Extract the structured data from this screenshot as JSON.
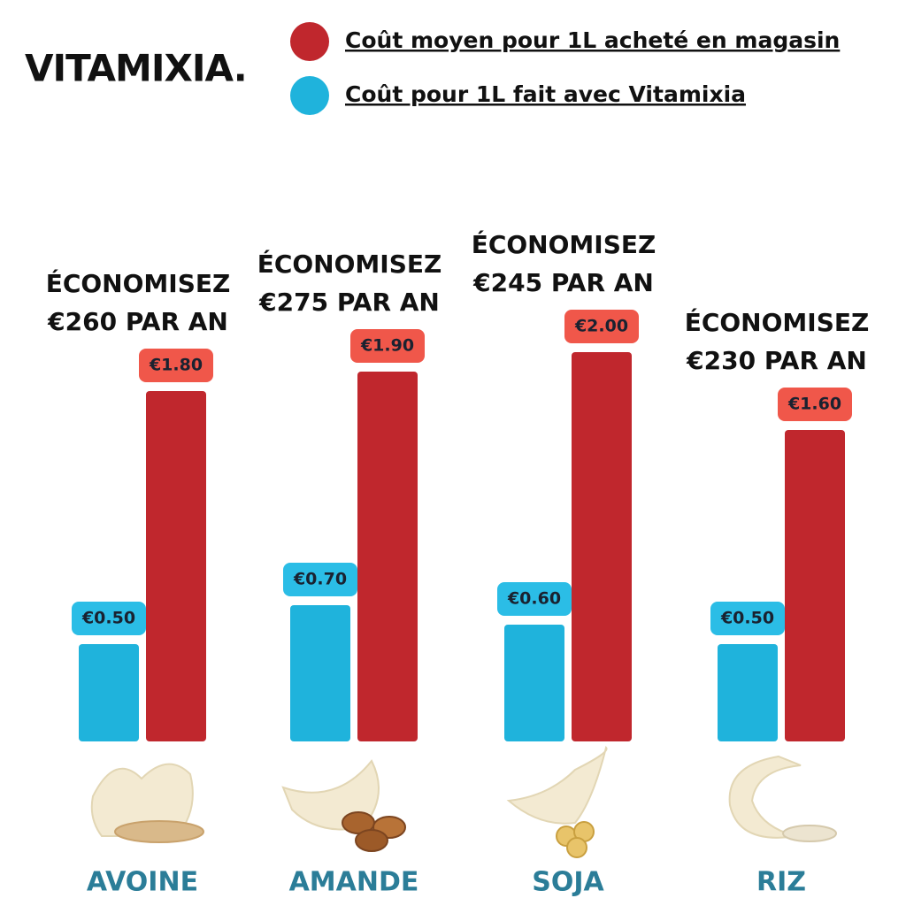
{
  "chart_data": {
    "type": "bar",
    "brand": "VITAMIXIA.",
    "categories": [
      "AVOINE",
      "AMANDE",
      "SOJA",
      "RIZ"
    ],
    "series": [
      {
        "name": "Coût pour 1L fait avec Vitamixia",
        "color": "#1fb3dc",
        "label_color": "#2bbde6",
        "values": [
          0.5,
          0.7,
          0.6,
          0.5
        ],
        "value_labels": [
          "€0.50",
          "€0.70",
          "€0.60",
          "€0.50"
        ]
      },
      {
        "name": "Coût moyen pour 1L acheté en magasin",
        "color": "#c0272d",
        "label_color": "#f0574a",
        "values": [
          1.8,
          1.9,
          2.0,
          1.6
        ],
        "value_labels": [
          "€1.80",
          "€1.90",
          "€2.00",
          "€1.60"
        ]
      }
    ],
    "legend_order": [
      1,
      0
    ],
    "annotations": [
      [
        "ÉCONOMISEZ",
        "€260 PAR AN"
      ],
      [
        "ÉCONOMISEZ",
        "€275 PAR AN"
      ],
      [
        "ÉCONOMISEZ",
        "€245 PAR AN"
      ],
      [
        "ÉCONOMISEZ",
        "€230 PAR AN"
      ]
    ]
  }
}
